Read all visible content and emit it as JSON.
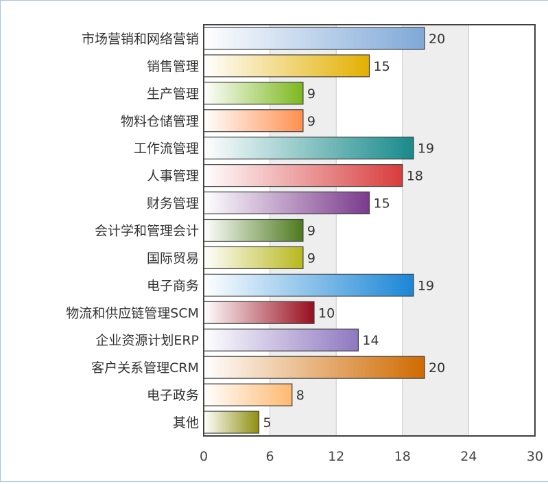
{
  "chart_data": {
    "type": "bar",
    "orientation": "horizontal",
    "title": "",
    "xlabel": "",
    "ylabel": "",
    "xlim": [
      0,
      30
    ],
    "x_ticks": [
      0,
      6,
      12,
      18,
      24,
      30
    ],
    "grid": "vertical bands",
    "legend": "none",
    "categories": [
      "市场营销和网络营销",
      "销售管理",
      "生产管理",
      "物料仓储管理",
      "工作流管理",
      "人事管理",
      "财务管理",
      "会计学和管理会计",
      "国际贸易",
      "电子商务",
      "物流和供应链管理SCM",
      "企业资源计划ERP",
      "客户关系管理CRM",
      "电子政务",
      "其他"
    ],
    "values": [
      20,
      15,
      9,
      9,
      19,
      18,
      15,
      9,
      9,
      19,
      10,
      14,
      20,
      8,
      5
    ],
    "colors": [
      "#7fa8d8",
      "#e3b000",
      "#7cb81c",
      "#ff8f4f",
      "#188a8a",
      "#d83c3c",
      "#7a3a8c",
      "#4d7a1e",
      "#b8b81c",
      "#1a86d6",
      "#980e1e",
      "#8e78c0",
      "#d06a00",
      "#ffb870",
      "#8f8f10"
    ]
  }
}
